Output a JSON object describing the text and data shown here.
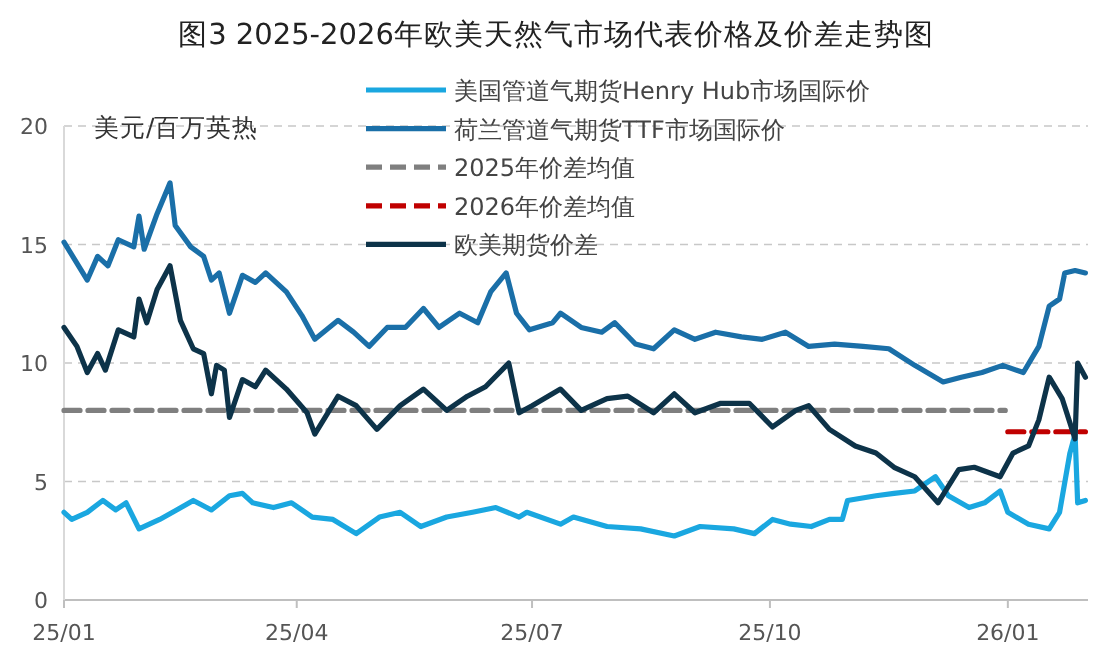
{
  "chart_data": {
    "type": "line",
    "title": "图3 2025-2026年欧美天然气市场代表价格及价差走势图",
    "ylabel": "美元/百万英热",
    "xlim": [
      "2025-01-01",
      "2026-02-01"
    ],
    "xticks": [
      {
        "value": "2025-01-01",
        "label": "25/01"
      },
      {
        "value": "2025-04-01",
        "label": "25/04"
      },
      {
        "value": "2025-07-01",
        "label": "25/07"
      },
      {
        "value": "2025-10-01",
        "label": "25/10"
      },
      {
        "value": "2026-01-01",
        "label": "26/01"
      }
    ],
    "ylim": [
      0,
      20
    ],
    "yticks": [
      0,
      5,
      10,
      15,
      20
    ],
    "grid": "y",
    "legend": "top right",
    "line_style": "solid",
    "marker": "none",
    "series": [
      {
        "name": "美国管道气期货Henry Hub市场国际价",
        "color": "#1aa7e0",
        "x": [
          "2025-01-01",
          "2025-01-04",
          "2025-01-10",
          "2025-01-16",
          "2025-01-21",
          "2025-01-25",
          "2025-01-30",
          "2025-02-07",
          "2025-02-12",
          "2025-02-20",
          "2025-02-27",
          "2025-03-06",
          "2025-03-11",
          "2025-03-15",
          "2025-03-23",
          "2025-03-30",
          "2025-04-07",
          "2025-04-15",
          "2025-04-24",
          "2025-05-03",
          "2025-05-11",
          "2025-05-19",
          "2025-05-29",
          "2025-06-08",
          "2025-06-17",
          "2025-06-26",
          "2025-06-29",
          "2025-07-12",
          "2025-07-17",
          "2025-07-30",
          "2025-08-12",
          "2025-08-25",
          "2025-09-04",
          "2025-09-17",
          "2025-09-25",
          "2025-10-02",
          "2025-10-09",
          "2025-10-17",
          "2025-10-24",
          "2025-10-29",
          "2025-10-31",
          "2025-11-11",
          "2025-11-18",
          "2025-11-26",
          "2025-12-04",
          "2025-12-09",
          "2025-12-17",
          "2025-12-23",
          "2025-12-29",
          "2026-01-01",
          "2026-01-09",
          "2026-01-17",
          "2026-01-21",
          "2026-01-25",
          "2026-01-27",
          "2026-01-28",
          "2026-01-31"
        ],
        "values": [
          3.7,
          3.4,
          3.7,
          4.2,
          3.8,
          4.1,
          3.0,
          3.4,
          3.7,
          4.2,
          3.8,
          4.4,
          4.5,
          4.1,
          3.9,
          4.1,
          3.5,
          3.4,
          2.8,
          3.5,
          3.7,
          3.1,
          3.5,
          3.7,
          3.9,
          3.5,
          3.7,
          3.2,
          3.5,
          3.1,
          3.0,
          2.7,
          3.1,
          3.0,
          2.8,
          3.4,
          3.2,
          3.1,
          3.4,
          3.4,
          4.2,
          4.4,
          4.5,
          4.6,
          5.2,
          4.4,
          3.9,
          4.1,
          4.6,
          3.7,
          3.2,
          3.0,
          3.7,
          6.2,
          7.0,
          4.1,
          4.2
        ]
      },
      {
        "name": "荷兰管道气期货TTF市场国际价",
        "color": "#1a6fa8",
        "x": [
          "2025-01-01",
          "2025-01-10",
          "2025-01-14",
          "2025-01-18",
          "2025-01-22",
          "2025-01-28",
          "2025-01-30",
          "2025-02-01",
          "2025-02-06",
          "2025-02-11",
          "2025-02-13",
          "2025-02-19",
          "2025-02-24",
          "2025-02-27",
          "2025-03-02",
          "2025-03-06",
          "2025-03-11",
          "2025-03-16",
          "2025-03-20",
          "2025-03-28",
          "2025-04-03",
          "2025-04-08",
          "2025-04-17",
          "2025-04-23",
          "2025-04-29",
          "2025-05-06",
          "2025-05-13",
          "2025-05-20",
          "2025-05-26",
          "2025-06-03",
          "2025-06-10",
          "2025-06-15",
          "2025-06-21",
          "2025-06-25",
          "2025-06-30",
          "2025-07-09",
          "2025-07-12",
          "2025-07-20",
          "2025-07-28",
          "2025-08-02",
          "2025-08-10",
          "2025-08-17",
          "2025-08-25",
          "2025-09-02",
          "2025-09-10",
          "2025-09-20",
          "2025-09-28",
          "2025-10-07",
          "2025-10-16",
          "2025-10-26",
          "2025-11-06",
          "2025-11-16",
          "2025-11-26",
          "2025-12-07",
          "2025-12-14",
          "2025-12-22",
          "2025-12-30",
          "2026-01-07",
          "2026-01-13",
          "2026-01-17",
          "2026-01-21",
          "2026-01-23",
          "2026-01-27",
          "2026-01-31"
        ],
        "values": [
          15.1,
          13.5,
          14.5,
          14.1,
          15.2,
          14.9,
          16.2,
          14.8,
          16.3,
          17.6,
          15.8,
          14.9,
          14.5,
          13.5,
          13.8,
          12.1,
          13.7,
          13.4,
          13.8,
          13.0,
          12.0,
          11.0,
          11.8,
          11.3,
          10.7,
          11.5,
          11.5,
          12.3,
          11.5,
          12.1,
          11.7,
          13.0,
          13.8,
          12.1,
          11.4,
          11.7,
          12.1,
          11.5,
          11.3,
          11.7,
          10.8,
          10.6,
          11.4,
          11.0,
          11.3,
          11.1,
          11.0,
          11.3,
          10.7,
          10.8,
          10.7,
          10.6,
          9.9,
          9.2,
          9.4,
          9.6,
          9.9,
          9.6,
          10.7,
          12.4,
          12.7,
          13.8,
          13.9,
          13.8
        ]
      },
      {
        "name": "2025年价差均值",
        "color": "#7f7f7f",
        "line_style": "dashed",
        "x": [
          "2025-01-01",
          "2025-12-31"
        ],
        "values": [
          8.0,
          8.0
        ]
      },
      {
        "name": "2026年价差均值",
        "color": "#c00000",
        "line_style": "dashed",
        "x": [
          "2026-01-01",
          "2026-01-31"
        ],
        "values": [
          7.1,
          7.1
        ]
      },
      {
        "name": "欧美期货价差",
        "color": "#0d3349",
        "x": [
          "2025-01-01",
          "2025-01-06",
          "2025-01-10",
          "2025-01-14",
          "2025-01-17",
          "2025-01-22",
          "2025-01-28",
          "2025-01-30",
          "2025-02-02",
          "2025-02-06",
          "2025-02-11",
          "2025-02-15",
          "2025-02-20",
          "2025-02-24",
          "2025-02-27",
          "2025-03-01",
          "2025-03-04",
          "2025-03-06",
          "2025-03-11",
          "2025-03-16",
          "2025-03-20",
          "2025-03-28",
          "2025-04-05",
          "2025-04-08",
          "2025-04-17",
          "2025-04-24",
          "2025-05-02",
          "2025-05-11",
          "2025-05-20",
          "2025-05-29",
          "2025-06-06",
          "2025-06-13",
          "2025-06-22",
          "2025-06-26",
          "2025-07-01",
          "2025-07-12",
          "2025-07-20",
          "2025-07-30",
          "2025-08-07",
          "2025-08-17",
          "2025-08-25",
          "2025-09-02",
          "2025-09-12",
          "2025-09-23",
          "2025-10-02",
          "2025-10-11",
          "2025-10-16",
          "2025-10-24",
          "2025-11-03",
          "2025-11-11",
          "2025-11-18",
          "2025-11-26",
          "2025-12-05",
          "2025-12-13",
          "2025-12-19",
          "2025-12-29",
          "2026-01-03",
          "2026-01-09",
          "2026-01-13",
          "2026-01-17",
          "2026-01-22",
          "2026-01-27",
          "2026-01-28",
          "2026-01-31"
        ],
        "values": [
          11.5,
          10.7,
          9.6,
          10.4,
          9.7,
          11.4,
          11.1,
          12.7,
          11.7,
          13.1,
          14.1,
          11.8,
          10.6,
          10.4,
          8.7,
          9.9,
          9.7,
          7.7,
          9.3,
          9.0,
          9.7,
          8.9,
          7.9,
          7.0,
          8.6,
          8.2,
          7.2,
          8.2,
          8.9,
          8.0,
          8.6,
          9.0,
          10.0,
          7.9,
          8.2,
          8.9,
          8.0,
          8.5,
          8.6,
          7.9,
          8.7,
          7.9,
          8.3,
          8.3,
          7.3,
          8.0,
          8.2,
          7.2,
          6.5,
          6.2,
          5.6,
          5.2,
          4.1,
          5.5,
          5.6,
          5.2,
          6.2,
          6.5,
          7.6,
          9.4,
          8.5,
          6.8,
          10.0,
          9.4
        ]
      }
    ]
  }
}
